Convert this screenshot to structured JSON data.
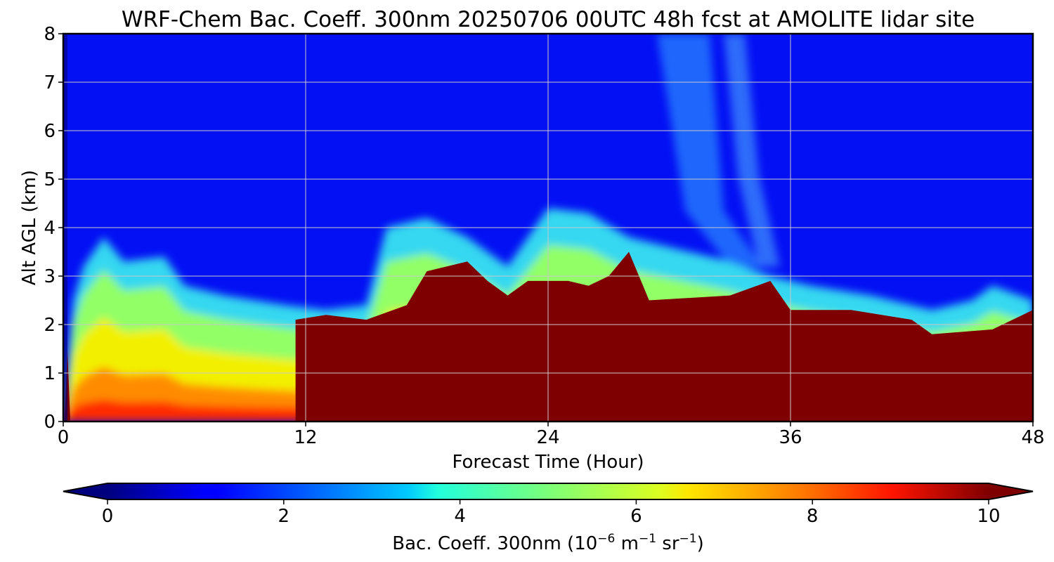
{
  "chart_data": {
    "type": "heatmap",
    "title": "WRF-Chem Bac. Coeff. 300nm  20250706 00UTC 48h fcst at AMOLITE lidar site",
    "xlabel": "Forecast Time (Hour)",
    "ylabel": "Alt AGL (km)",
    "xlim": [
      0,
      48
    ],
    "ylim": [
      0,
      8
    ],
    "x_ticks": [
      0,
      12,
      24,
      36,
      48
    ],
    "y_ticks": [
      0,
      1,
      2,
      3,
      4,
      5,
      6,
      7,
      8
    ],
    "grid": true,
    "colormap": "jet",
    "colorbar": {
      "orientation": "horizontal",
      "placement": "bottom",
      "label_prefix": "Bac. Coeff. 300nm  (10",
      "label_exp1": "−6",
      "label_mid1": " m",
      "label_exp2": "−1",
      "label_mid2": " sr",
      "label_exp3": "−1",
      "label_suffix": ")",
      "range": [
        0,
        10
      ],
      "ticks": [
        0,
        2,
        4,
        6,
        8,
        10
      ],
      "extend": "both"
    },
    "top_layer_km": [
      {
        "hour": 0,
        "km": 0
      },
      {
        "hour": 0.5,
        "km": 2.5
      },
      {
        "hour": 1,
        "km": 3.2
      },
      {
        "hour": 2,
        "km": 3.8
      },
      {
        "hour": 3,
        "km": 3.3
      },
      {
        "hour": 5,
        "km": 3.4
      },
      {
        "hour": 6,
        "km": 2.8
      },
      {
        "hour": 8,
        "km": 2.6
      },
      {
        "hour": 11,
        "km": 2.4
      },
      {
        "hour": 13,
        "km": 2.3
      },
      {
        "hour": 15,
        "km": 2.4
      },
      {
        "hour": 16,
        "km": 4.0
      },
      {
        "hour": 18,
        "km": 4.2
      },
      {
        "hour": 20,
        "km": 3.8
      },
      {
        "hour": 22,
        "km": 3.2
      },
      {
        "hour": 24,
        "km": 4.4
      },
      {
        "hour": 26,
        "km": 4.3
      },
      {
        "hour": 28,
        "km": 3.8
      },
      {
        "hour": 30,
        "km": 3.6
      },
      {
        "hour": 33,
        "km": 3.3
      },
      {
        "hour": 35,
        "km": 3.0
      },
      {
        "hour": 37,
        "km": 2.8
      },
      {
        "hour": 40,
        "km": 2.6
      },
      {
        "hour": 43,
        "km": 2.3
      },
      {
        "hour": 45,
        "km": 2.5
      },
      {
        "hour": 46,
        "km": 2.8
      },
      {
        "hour": 48,
        "km": 2.5
      }
    ],
    "dense_layer_km": [
      {
        "hour": 11.5,
        "km": 2.1
      },
      {
        "hour": 13,
        "km": 2.2
      },
      {
        "hour": 15,
        "km": 2.1
      },
      {
        "hour": 17,
        "km": 2.4
      },
      {
        "hour": 18,
        "km": 3.1
      },
      {
        "hour": 20,
        "km": 3.3
      },
      {
        "hour": 21,
        "km": 2.9
      },
      {
        "hour": 22,
        "km": 2.6
      },
      {
        "hour": 23,
        "km": 2.9
      },
      {
        "hour": 25,
        "km": 2.9
      },
      {
        "hour": 26,
        "km": 2.8
      },
      {
        "hour": 27,
        "km": 3.0
      },
      {
        "hour": 28,
        "km": 3.5
      },
      {
        "hour": 29,
        "km": 2.5
      },
      {
        "hour": 33,
        "km": 2.6
      },
      {
        "hour": 35,
        "km": 2.9
      },
      {
        "hour": 36,
        "km": 2.3
      },
      {
        "hour": 39,
        "km": 2.3
      },
      {
        "hour": 42,
        "km": 2.1
      },
      {
        "hour": 43,
        "km": 1.8
      },
      {
        "hour": 46,
        "km": 1.9
      },
      {
        "hour": 48,
        "km": 2.3
      }
    ]
  }
}
